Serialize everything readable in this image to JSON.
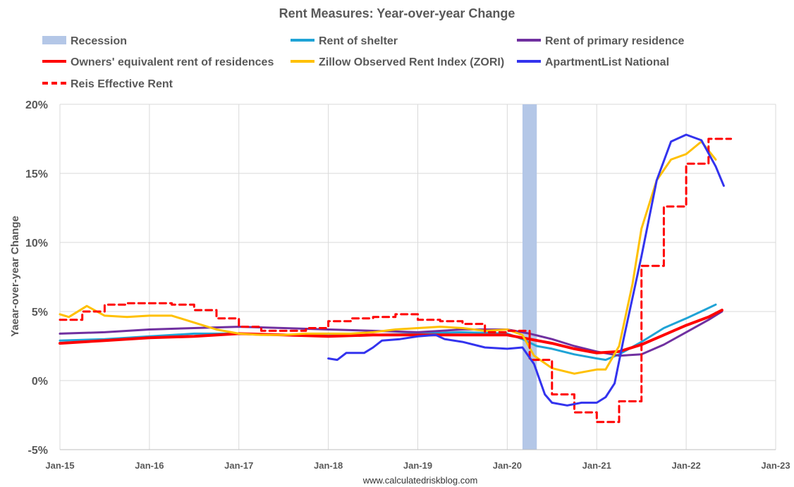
{
  "chart_data": {
    "type": "line",
    "title": "Rent Measures: Year-over-year Change",
    "ylabel": "Yaear-over-year Change",
    "xlabel": "",
    "source": "www.calculatedriskblog.com",
    "ylim": [
      -5,
      20
    ],
    "xlim": [
      2015.0,
      2023.0
    ],
    "grid": true,
    "legend_position": "top",
    "y_ticks": [
      {
        "value": -5,
        "label": "-5%"
      },
      {
        "value": 0,
        "label": "0%"
      },
      {
        "value": 5,
        "label": "5%"
      },
      {
        "value": 10,
        "label": "10%"
      },
      {
        "value": 15,
        "label": "15%"
      },
      {
        "value": 20,
        "label": "20%"
      }
    ],
    "x_ticks": [
      {
        "value": 2015,
        "label": "Jan-15"
      },
      {
        "value": 2016,
        "label": "Jan-16"
      },
      {
        "value": 2017,
        "label": "Jan-17"
      },
      {
        "value": 2018,
        "label": "Jan-18"
      },
      {
        "value": 2019,
        "label": "Jan-19"
      },
      {
        "value": 2020,
        "label": "Jan-20"
      },
      {
        "value": 2021,
        "label": "Jan-21"
      },
      {
        "value": 2022,
        "label": "Jan-22"
      },
      {
        "value": 2023,
        "label": "Jan-23"
      }
    ],
    "recession": {
      "name": "Recession",
      "start": 2020.17,
      "end": 2020.33,
      "color": "#b4c7e7"
    },
    "series": [
      {
        "name": "Rent of shelter",
        "color": "#1fa3d6",
        "dash": false,
        "width": 3,
        "points": [
          [
            2015.0,
            2.9
          ],
          [
            2015.5,
            3.0
          ],
          [
            2016.0,
            3.2
          ],
          [
            2016.5,
            3.4
          ],
          [
            2017.0,
            3.4
          ],
          [
            2017.5,
            3.3
          ],
          [
            2018.0,
            3.3
          ],
          [
            2018.5,
            3.3
          ],
          [
            2019.0,
            3.4
          ],
          [
            2019.5,
            3.5
          ],
          [
            2020.0,
            3.4
          ],
          [
            2020.17,
            3.0
          ],
          [
            2020.33,
            2.5
          ],
          [
            2020.5,
            2.3
          ],
          [
            2020.75,
            1.9
          ],
          [
            2021.0,
            1.6
          ],
          [
            2021.1,
            1.5
          ],
          [
            2021.25,
            1.9
          ],
          [
            2021.5,
            2.8
          ],
          [
            2021.75,
            3.8
          ],
          [
            2022.0,
            4.5
          ],
          [
            2022.2,
            5.1
          ],
          [
            2022.33,
            5.5
          ]
        ]
      },
      {
        "name": "Rent of primary residence",
        "color": "#7030a0",
        "dash": false,
        "width": 3,
        "points": [
          [
            2015.0,
            3.4
          ],
          [
            2015.5,
            3.5
          ],
          [
            2016.0,
            3.7
          ],
          [
            2016.5,
            3.8
          ],
          [
            2017.0,
            3.9
          ],
          [
            2017.5,
            3.8
          ],
          [
            2018.0,
            3.7
          ],
          [
            2018.5,
            3.6
          ],
          [
            2019.0,
            3.5
          ],
          [
            2019.5,
            3.7
          ],
          [
            2020.0,
            3.7
          ],
          [
            2020.25,
            3.4
          ],
          [
            2020.5,
            3.0
          ],
          [
            2020.75,
            2.5
          ],
          [
            2021.0,
            2.1
          ],
          [
            2021.25,
            1.8
          ],
          [
            2021.5,
            1.9
          ],
          [
            2021.75,
            2.6
          ],
          [
            2022.0,
            3.5
          ],
          [
            2022.25,
            4.4
          ],
          [
            2022.4,
            5.0
          ]
        ]
      },
      {
        "name": "Owners' equivalent rent of residences",
        "color": "#ff0000",
        "dash": false,
        "width": 4,
        "points": [
          [
            2015.0,
            2.7
          ],
          [
            2015.5,
            2.9
          ],
          [
            2016.0,
            3.1
          ],
          [
            2016.5,
            3.2
          ],
          [
            2017.0,
            3.4
          ],
          [
            2017.5,
            3.3
          ],
          [
            2018.0,
            3.2
          ],
          [
            2018.5,
            3.3
          ],
          [
            2019.0,
            3.3
          ],
          [
            2019.5,
            3.3
          ],
          [
            2020.0,
            3.3
          ],
          [
            2020.25,
            3.0
          ],
          [
            2020.5,
            2.7
          ],
          [
            2020.75,
            2.3
          ],
          [
            2021.0,
            2.0
          ],
          [
            2021.25,
            2.1
          ],
          [
            2021.5,
            2.6
          ],
          [
            2021.75,
            3.3
          ],
          [
            2022.0,
            4.0
          ],
          [
            2022.25,
            4.6
          ],
          [
            2022.4,
            5.1
          ]
        ]
      },
      {
        "name": "Zillow Observed Rent Index (ZORI)",
        "color": "#ffc000",
        "dash": false,
        "width": 3,
        "points": [
          [
            2015.0,
            4.8
          ],
          [
            2015.1,
            4.6
          ],
          [
            2015.3,
            5.4
          ],
          [
            2015.5,
            4.7
          ],
          [
            2015.75,
            4.6
          ],
          [
            2016.0,
            4.7
          ],
          [
            2016.25,
            4.7
          ],
          [
            2016.5,
            4.2
          ],
          [
            2016.75,
            3.7
          ],
          [
            2017.0,
            3.4
          ],
          [
            2017.25,
            3.3
          ],
          [
            2017.5,
            3.3
          ],
          [
            2017.75,
            3.4
          ],
          [
            2018.0,
            3.4
          ],
          [
            2018.25,
            3.4
          ],
          [
            2018.5,
            3.5
          ],
          [
            2018.75,
            3.7
          ],
          [
            2019.0,
            3.8
          ],
          [
            2019.25,
            3.9
          ],
          [
            2019.5,
            3.8
          ],
          [
            2019.75,
            3.6
          ],
          [
            2020.0,
            3.7
          ],
          [
            2020.17,
            3.3
          ],
          [
            2020.3,
            1.8
          ],
          [
            2020.5,
            0.9
          ],
          [
            2020.75,
            0.5
          ],
          [
            2021.0,
            0.8
          ],
          [
            2021.1,
            0.8
          ],
          [
            2021.25,
            2.5
          ],
          [
            2021.4,
            7.0
          ],
          [
            2021.5,
            11.0
          ],
          [
            2021.67,
            14.5
          ],
          [
            2021.83,
            16.0
          ],
          [
            2022.0,
            16.4
          ],
          [
            2022.17,
            17.3
          ],
          [
            2022.33,
            16.0
          ]
        ]
      },
      {
        "name": "ApartmentList National",
        "color": "#3333ee",
        "dash": false,
        "width": 3,
        "points": [
          [
            2018.0,
            1.6
          ],
          [
            2018.1,
            1.5
          ],
          [
            2018.2,
            2.0
          ],
          [
            2018.4,
            2.0
          ],
          [
            2018.5,
            2.4
          ],
          [
            2018.6,
            2.9
          ],
          [
            2018.8,
            3.0
          ],
          [
            2019.0,
            3.2
          ],
          [
            2019.2,
            3.3
          ],
          [
            2019.3,
            3.0
          ],
          [
            2019.5,
            2.8
          ],
          [
            2019.75,
            2.4
          ],
          [
            2020.0,
            2.3
          ],
          [
            2020.17,
            2.4
          ],
          [
            2020.3,
            1.2
          ],
          [
            2020.42,
            -1.0
          ],
          [
            2020.5,
            -1.6
          ],
          [
            2020.67,
            -1.8
          ],
          [
            2020.83,
            -1.6
          ],
          [
            2021.0,
            -1.6
          ],
          [
            2021.1,
            -1.2
          ],
          [
            2021.2,
            -0.2
          ],
          [
            2021.3,
            3.0
          ],
          [
            2021.5,
            9.0
          ],
          [
            2021.67,
            14.5
          ],
          [
            2021.83,
            17.3
          ],
          [
            2022.0,
            17.8
          ],
          [
            2022.17,
            17.4
          ],
          [
            2022.33,
            15.5
          ],
          [
            2022.42,
            14.1
          ]
        ]
      },
      {
        "name": "Reis Effective Rent",
        "color": "#ff0000",
        "dash": true,
        "width": 3,
        "step": true,
        "points": [
          [
            2015.0,
            4.4
          ],
          [
            2015.25,
            5.0
          ],
          [
            2015.5,
            5.5
          ],
          [
            2015.75,
            5.6
          ],
          [
            2016.0,
            5.6
          ],
          [
            2016.25,
            5.5
          ],
          [
            2016.5,
            5.1
          ],
          [
            2016.75,
            4.5
          ],
          [
            2017.0,
            3.9
          ],
          [
            2017.25,
            3.6
          ],
          [
            2017.5,
            3.6
          ],
          [
            2017.75,
            3.8
          ],
          [
            2018.0,
            4.3
          ],
          [
            2018.25,
            4.5
          ],
          [
            2018.5,
            4.6
          ],
          [
            2018.75,
            4.8
          ],
          [
            2019.0,
            4.4
          ],
          [
            2019.25,
            4.3
          ],
          [
            2019.5,
            4.1
          ],
          [
            2019.75,
            3.5
          ],
          [
            2020.0,
            3.6
          ],
          [
            2020.25,
            1.5
          ],
          [
            2020.5,
            -1.0
          ],
          [
            2020.75,
            -2.3
          ],
          [
            2021.0,
            -3.0
          ],
          [
            2021.25,
            -1.5
          ],
          [
            2021.5,
            8.3
          ],
          [
            2021.75,
            12.6
          ],
          [
            2022.0,
            15.7
          ],
          [
            2022.25,
            17.5
          ],
          [
            2022.5,
            17.5
          ]
        ]
      }
    ],
    "legend": [
      {
        "label": "Recession",
        "key": "recession"
      },
      {
        "label": "Rent of shelter",
        "key": "s0"
      },
      {
        "label": "Rent of primary residence",
        "key": "s1"
      },
      {
        "label": "Owners' equivalent rent of residences",
        "key": "s2"
      },
      {
        "label": "Zillow Observed Rent Index (ZORI)",
        "key": "s3"
      },
      {
        "label": "ApartmentList National",
        "key": "s4"
      },
      {
        "label": "Reis Effective Rent",
        "key": "s5"
      }
    ]
  }
}
